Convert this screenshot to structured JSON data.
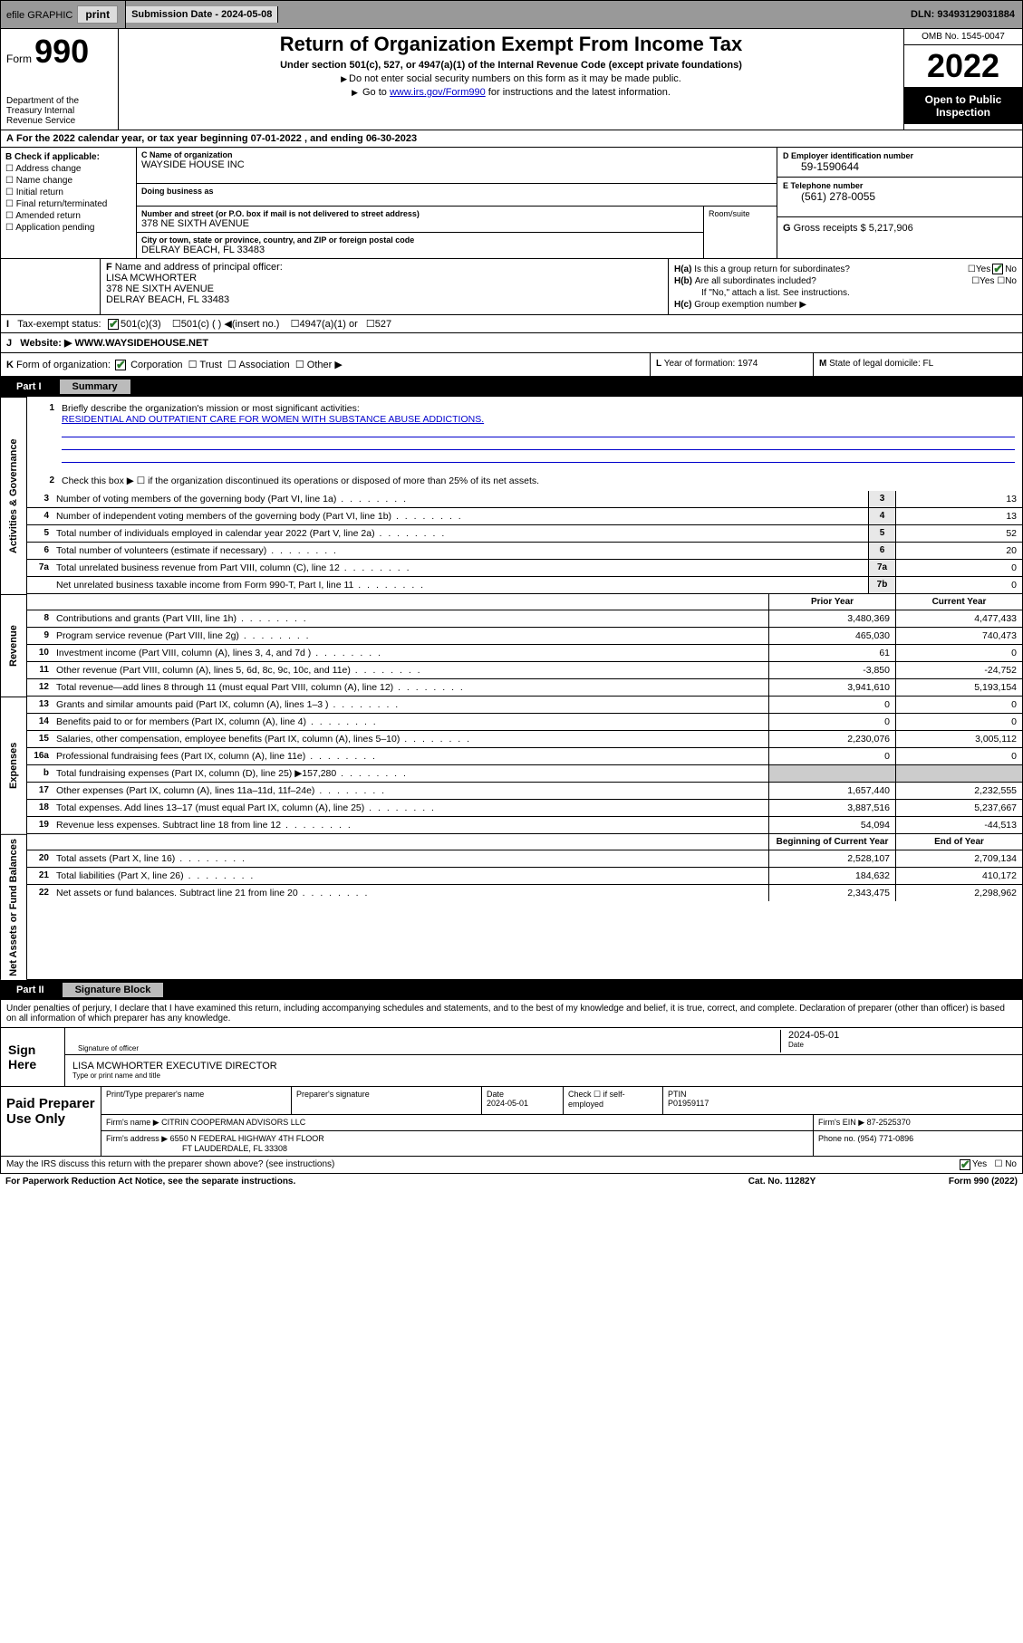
{
  "topbar": {
    "efile_label": "efile GRAPHIC",
    "print_btn": "print",
    "submission_label": "Submission Date - ",
    "submission_date": "2024-05-08",
    "dln_label": "DLN: ",
    "dln": "93493129031884"
  },
  "header": {
    "form_label": "Form",
    "form_no": "990",
    "dept": "Department of the Treasury\nInternal Revenue Service",
    "title": "Return of Organization Exempt From Income Tax",
    "subtitle": "Under section 501(c), 527, or 4947(a)(1) of the Internal Revenue Code (except private foundations)",
    "note1": "Do not enter social security numbers on this form as it may be made public.",
    "note2_pre": "Go to ",
    "note2_link": "www.irs.gov/Form990",
    "note2_post": " for instructions and the latest information.",
    "omb": "OMB No. 1545-0047",
    "year": "2022",
    "open": "Open to Public Inspection"
  },
  "tax_year": {
    "text": "For the 2022 calendar year, or tax year beginning ",
    "begin": "07-01-2022",
    "mid": " , and ending ",
    "end": "06-30-2023"
  },
  "section_b": {
    "check_label": "Check if applicable:",
    "checks": [
      "Address change",
      "Name change",
      "Initial return",
      "Final return/terminated",
      "Amended return",
      "Application pending"
    ],
    "name_label": "Name of organization",
    "org_name": "WAYSIDE HOUSE INC",
    "dba_label": "Doing business as",
    "addr_label": "Number and street (or P.O. box if mail is not delivered to street address)",
    "addr": "378 NE SIXTH AVENUE",
    "room_label": "Room/suite",
    "city_label": "City or town, state or province, country, and ZIP or foreign postal code",
    "city": "DELRAY BEACH, FL  33483",
    "ein_label": "Employer identification number",
    "ein": "59-1590644",
    "tel_label": "Telephone number",
    "tel": "(561) 278-0055",
    "gross_label": "Gross receipts $ ",
    "gross": "5,217,906"
  },
  "officer": {
    "label": "Name and address of principal officer:",
    "name": "LISA MCWHORTER",
    "addr1": "378 NE SIXTH AVENUE",
    "addr2": "DELRAY BEACH, FL  33483",
    "ha": "Is this a group return for subordinates?",
    "hb": "Are all subordinates included?",
    "hb_note": "If \"No,\" attach a list. See instructions.",
    "hc": "Group exemption number ▶"
  },
  "tax_status": {
    "label": "Tax-exempt status:",
    "opts": [
      "501(c)(3)",
      "501(c) (  ) ◀(insert no.)",
      "4947(a)(1) or",
      "527"
    ]
  },
  "website": {
    "label": "Website: ▶",
    "val": "WWW.WAYSIDEHOUSE.NET"
  },
  "korg": {
    "label": "Form of organization:",
    "opts": [
      "Corporation",
      "Trust",
      "Association",
      "Other ▶"
    ],
    "year_label": "Year of formation: ",
    "year": "1974",
    "domicile_label": "State of legal domicile: ",
    "domicile": "FL"
  },
  "parts": {
    "part1": "Part I",
    "part1_title": "Summary",
    "part2": "Part II",
    "part2_title": "Signature Block"
  },
  "side_labels": {
    "gov": "Activities & Governance",
    "rev": "Revenue",
    "exp": "Expenses",
    "net": "Net Assets or Fund Balances"
  },
  "mission": {
    "label": "Briefly describe the organization's mission or most significant activities:",
    "text": "RESIDENTIAL AND OUTPATIENT CARE FOR WOMEN WITH SUBSTANCE ABUSE ADDICTIONS."
  },
  "line2": "Check this box ▶ ☐  if the organization discontinued its operations or disposed of more than 25% of its net assets.",
  "gov_lines": [
    {
      "no": "3",
      "text": "Number of voting members of the governing body (Part VI, line 1a)",
      "cell": "3",
      "val": "13"
    },
    {
      "no": "4",
      "text": "Number of independent voting members of the governing body (Part VI, line 1b)",
      "cell": "4",
      "val": "13"
    },
    {
      "no": "5",
      "text": "Total number of individuals employed in calendar year 2022 (Part V, line 2a)",
      "cell": "5",
      "val": "52"
    },
    {
      "no": "6",
      "text": "Total number of volunteers (estimate if necessary)",
      "cell": "6",
      "val": "20"
    },
    {
      "no": "7a",
      "text": "Total unrelated business revenue from Part VIII, column (C), line 12",
      "cell": "7a",
      "val": "0"
    },
    {
      "no": "",
      "text": "Net unrelated business taxable income from Form 990-T, Part I, line 11",
      "cell": "7b",
      "val": "0"
    }
  ],
  "col_headers": {
    "prior": "Prior Year",
    "current": "Current Year",
    "boy": "Beginning of Current Year",
    "eoy": "End of Year"
  },
  "rev_lines": [
    {
      "no": "8",
      "text": "Contributions and grants (Part VIII, line 1h)",
      "prior": "3,480,369",
      "curr": "4,477,433"
    },
    {
      "no": "9",
      "text": "Program service revenue (Part VIII, line 2g)",
      "prior": "465,030",
      "curr": "740,473"
    },
    {
      "no": "10",
      "text": "Investment income (Part VIII, column (A), lines 3, 4, and 7d )",
      "prior": "61",
      "curr": "0"
    },
    {
      "no": "11",
      "text": "Other revenue (Part VIII, column (A), lines 5, 6d, 8c, 9c, 10c, and 11e)",
      "prior": "-3,850",
      "curr": "-24,752"
    },
    {
      "no": "12",
      "text": "Total revenue—add lines 8 through 11 (must equal Part VIII, column (A), line 12)",
      "prior": "3,941,610",
      "curr": "5,193,154"
    }
  ],
  "exp_lines": [
    {
      "no": "13",
      "text": "Grants and similar amounts paid (Part IX, column (A), lines 1–3 )",
      "prior": "0",
      "curr": "0"
    },
    {
      "no": "14",
      "text": "Benefits paid to or for members (Part IX, column (A), line 4)",
      "prior": "0",
      "curr": "0"
    },
    {
      "no": "15",
      "text": "Salaries, other compensation, employee benefits (Part IX, column (A), lines 5–10)",
      "prior": "2,230,076",
      "curr": "3,005,112"
    },
    {
      "no": "16a",
      "text": "Professional fundraising fees (Part IX, column (A), line 11e)",
      "prior": "0",
      "curr": "0"
    },
    {
      "no": "b",
      "text": "Total fundraising expenses (Part IX, column (D), line 25) ▶157,280",
      "prior": "",
      "curr": "",
      "shaded": true
    },
    {
      "no": "17",
      "text": "Other expenses (Part IX, column (A), lines 11a–11d, 11f–24e)",
      "prior": "1,657,440",
      "curr": "2,232,555"
    },
    {
      "no": "18",
      "text": "Total expenses. Add lines 13–17 (must equal Part IX, column (A), line 25)",
      "prior": "3,887,516",
      "curr": "5,237,667"
    },
    {
      "no": "19",
      "text": "Revenue less expenses. Subtract line 18 from line 12",
      "prior": "54,094",
      "curr": "-44,513"
    }
  ],
  "net_lines": [
    {
      "no": "20",
      "text": "Total assets (Part X, line 16)",
      "prior": "2,528,107",
      "curr": "2,709,134"
    },
    {
      "no": "21",
      "text": "Total liabilities (Part X, line 26)",
      "prior": "184,632",
      "curr": "410,172"
    },
    {
      "no": "22",
      "text": "Net assets or fund balances. Subtract line 21 from line 20",
      "prior": "2,343,475",
      "curr": "2,298,962"
    }
  ],
  "sig": {
    "penalty": "Under penalties of perjury, I declare that I have examined this return, including accompanying schedules and statements, and to the best of my knowledge and belief, it is true, correct, and complete. Declaration of preparer (other than officer) is based on all information of which preparer has any knowledge.",
    "sign_here": "Sign Here",
    "sig_officer": "Signature of officer",
    "sig_date": "2024-05-01",
    "date_lbl": "Date",
    "officer": "LISA MCWHORTER  EXECUTIVE DIRECTOR",
    "typed": "Type or print name and title"
  },
  "prep": {
    "label": "Paid Preparer Use Only",
    "h1": "Print/Type preparer's name",
    "h2": "Preparer's signature",
    "h3": "Date",
    "date": "2024-05-01",
    "h4": "Check ☐ if self-employed",
    "h5": "PTIN",
    "ptin": "P01959117",
    "firm_label": "Firm's name    ▶",
    "firm": "CITRIN COOPERMAN ADVISORS LLC",
    "ein_label": "Firm's EIN ▶",
    "ein": "87-2525370",
    "addr_label": "Firm's address ▶",
    "addr1": "6550 N FEDERAL HIGHWAY 4TH FLOOR",
    "addr2": "FT LAUDERDALE, FL  33308",
    "phone_label": "Phone no. ",
    "phone": "(954) 771-0896"
  },
  "footer": {
    "discuss": "May the IRS discuss this return with the preparer shown above? (see instructions)",
    "paperwork": "For Paperwork Reduction Act Notice, see the separate instructions.",
    "cat": "Cat. No. 11282Y",
    "formno": "Form 990 (2022)"
  }
}
